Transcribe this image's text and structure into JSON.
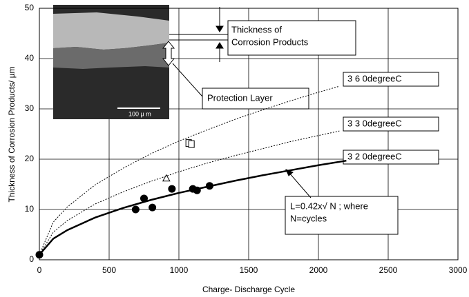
{
  "chart_data": {
    "type": "scatter",
    "xlabel": "Charge- Discharge Cycle",
    "ylabel": "Thickness of Corrosion Products/ µm",
    "xlim": [
      0,
      3000
    ],
    "xticks": [
      0,
      500,
      1000,
      1500,
      2000,
      2500,
      3000
    ],
    "ylim": [
      0,
      50
    ],
    "yticks": [
      0,
      10,
      20,
      30,
      40,
      50
    ],
    "grid": true,
    "series": [
      {
        "kind": "line",
        "style": "solid",
        "color": "#000000",
        "x": [
          0,
          100,
          200,
          400,
          600,
          800,
          1000,
          1200,
          1400,
          1600,
          1800,
          2000,
          2200
        ],
        "values": [
          1,
          4.2,
          5.9,
          8.4,
          10.3,
          11.9,
          13.3,
          14.5,
          15.7,
          16.8,
          17.8,
          18.8,
          19.7
        ]
      },
      {
        "kind": "line",
        "style": "dotted",
        "color": "#000000",
        "x": [
          0,
          100,
          200,
          400,
          600,
          800,
          1000,
          1200,
          1400,
          1600,
          1800,
          2000,
          2150
        ],
        "values": [
          1,
          5.5,
          7.8,
          11.1,
          13.5,
          15.6,
          17.5,
          19.2,
          20.7,
          22.1,
          23.5,
          24.7,
          25.6
        ]
      },
      {
        "kind": "line",
        "style": "dotted",
        "color": "#000000",
        "x": [
          0,
          100,
          200,
          400,
          600,
          800,
          1000,
          1200,
          1400,
          1600,
          1800,
          2000,
          2150
        ],
        "values": [
          1,
          7.5,
          10.5,
          14.9,
          18.2,
          21.1,
          23.6,
          25.8,
          27.9,
          29.8,
          31.6,
          33.3,
          34.5
        ]
      },
      {
        "kind": "points",
        "marker": "circle",
        "color": "#000000",
        "x": [
          0,
          690,
          750,
          810,
          950,
          1100,
          1130,
          1220
        ],
        "values": [
          1,
          10,
          12.2,
          10.4,
          14.1,
          14.1,
          13.8,
          14.7
        ]
      },
      {
        "kind": "points",
        "marker": "triangle",
        "color": "#000000",
        "x": [
          910
        ],
        "values": [
          16.2
        ]
      },
      {
        "kind": "points",
        "marker": "square",
        "color": "#000000",
        "x": [
          1070,
          1090
        ],
        "values": [
          23.2,
          23
        ]
      }
    ],
    "annotations": [
      {
        "lines": [
          "Thickness of",
          "Corrosion Products"
        ]
      },
      {
        "lines": [
          "Protection Layer"
        ]
      },
      {
        "lines": [
          "3 6 0degreeC"
        ]
      },
      {
        "lines": [
          "3 3 0degreeC"
        ]
      },
      {
        "lines": [
          "3 2 0degreeC"
        ]
      },
      {
        "lines": [
          "L=0.42x√ N  ;  where",
          "N=cycles"
        ]
      },
      {
        "lines": [
          "100 μ m"
        ]
      }
    ]
  }
}
